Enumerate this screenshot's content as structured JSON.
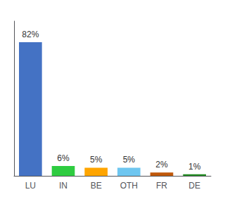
{
  "chart_data": {
    "type": "bar",
    "categories": [
      "LU",
      "IN",
      "BE",
      "OTH",
      "FR",
      "DE"
    ],
    "values": [
      82,
      6,
      5,
      5,
      2,
      1
    ],
    "value_labels": [
      "82%",
      "6%",
      "5%",
      "5%",
      "2%",
      "1%"
    ],
    "data_labels": true,
    "colors": [
      "#4472C4",
      "#2ECC40",
      "#FFA500",
      "#6EC6F0",
      "#C0580A",
      "#228B22"
    ],
    "ylim": [
      0,
      95
    ],
    "tick_labels": "x",
    "grid": false
  }
}
